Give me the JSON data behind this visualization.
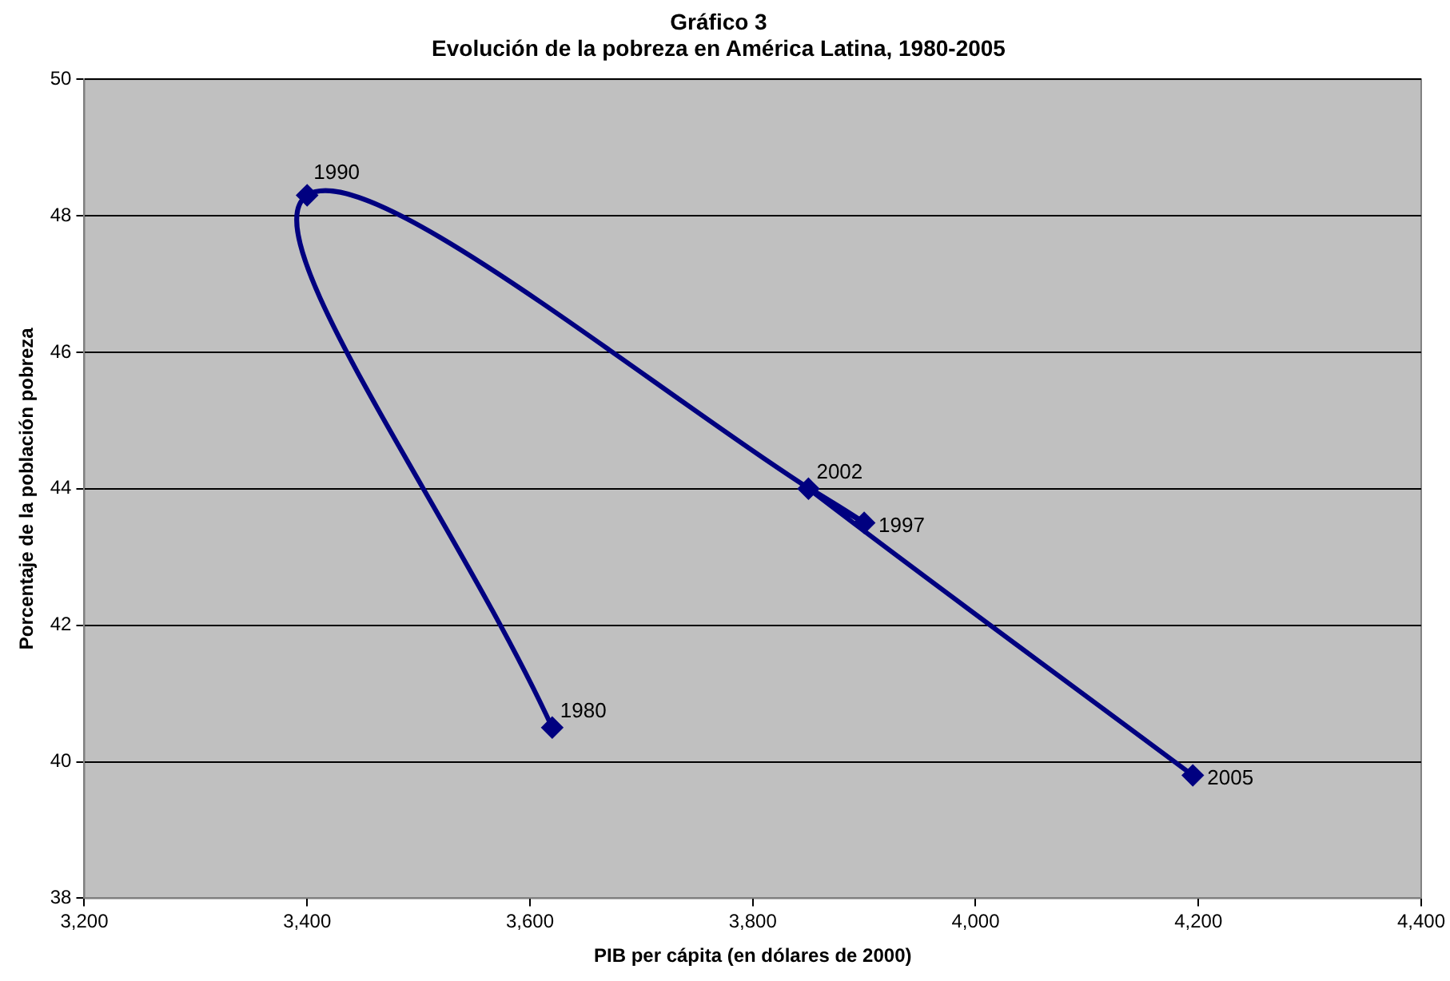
{
  "chart_data": {
    "type": "line",
    "title": "Gráfico 3\nEvolución de la pobreza en América Latina, 1980-2005",
    "xlabel": "PIB per cápita (en dólares de 2000)",
    "ylabel": "Porcentaje de la población pobreza",
    "series": [
      {
        "color": "#000080",
        "x": [
          3620,
          3400,
          3900,
          3850,
          4195
        ],
        "values": [
          40.5,
          48.3,
          43.5,
          44.0,
          39.8
        ]
      }
    ],
    "xlim": [
      3200,
      4400
    ],
    "xticks": [
      {
        "value": 3200,
        "label": "3,200"
      },
      {
        "value": 3400,
        "label": "3,400"
      },
      {
        "value": 3600,
        "label": "3,600"
      },
      {
        "value": 3800,
        "label": "3,800"
      },
      {
        "value": 4000,
        "label": "4,000"
      },
      {
        "value": 4200,
        "label": "4,200"
      },
      {
        "value": 4400,
        "label": "4,400"
      }
    ],
    "ylim": [
      38,
      50
    ],
    "yticks": [
      38,
      40,
      42,
      44,
      46,
      48,
      50
    ],
    "grid": "y",
    "legend": false,
    "marker": "diamond",
    "line_style": "solid",
    "annotations": [
      {
        "text": "1980",
        "x": 3620,
        "y": 40.5
      },
      {
        "text": "1990",
        "x": 3400,
        "y": 48.3
      },
      {
        "text": "1997",
        "x": 3900,
        "y": 43.5
      },
      {
        "text": "2002",
        "x": 3850,
        "y": 44.0
      },
      {
        "text": "2005",
        "x": 4195,
        "y": 39.8
      }
    ]
  }
}
